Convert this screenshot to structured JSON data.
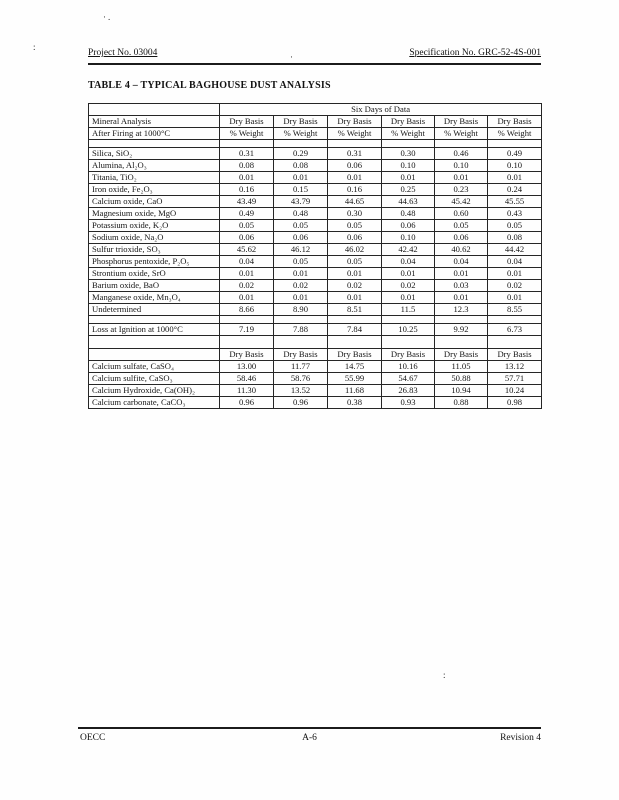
{
  "document": {
    "header": {
      "project": "Project No. 03004",
      "specification": "Specification No. GRC-52-4S-001"
    },
    "title": "TABLE 4 – TYPICAL BAGHOUSE DUST ANALYSIS",
    "footer": {
      "left": "OECC",
      "center": "A-6",
      "right": "Revision 4"
    }
  },
  "table": {
    "span_header": "Six Days of Data",
    "header_col1_line1": "Mineral Analysis",
    "header_col1_line2": "After Firing at 1000°C",
    "basis_label": "Dry Basis",
    "weight_label": "% Weight",
    "num_data_columns": 6,
    "mineral_rows": [
      {
        "label": "Silica, SiO₂",
        "values": [
          "0.31",
          "0.29",
          "0.31",
          "0.30",
          "0.46",
          "0.49"
        ]
      },
      {
        "label": "Alumina, Al₂O₃",
        "values": [
          "0.08",
          "0.08",
          "0.06",
          "0.10",
          "0.10",
          "0.10"
        ]
      },
      {
        "label": "Titania, TiO₂",
        "values": [
          "0.01",
          "0.01",
          "0.01",
          "0.01",
          "0.01",
          "0.01"
        ]
      },
      {
        "label": "Iron oxide, Fe₂O₃",
        "values": [
          "0.16",
          "0.15",
          "0.16",
          "0.25",
          "0.23",
          "0.24"
        ]
      },
      {
        "label": "Calcium oxide, CaO",
        "values": [
          "43.49",
          "43.79",
          "44.65",
          "44.63",
          "45.42",
          "45.55"
        ]
      },
      {
        "label": "Magnesium oxide, MgO",
        "values": [
          "0.49",
          "0.48",
          "0.30",
          "0.48",
          "0.60",
          "0.43"
        ]
      },
      {
        "label": "Potassium oxide, K₂O",
        "values": [
          "0.05",
          "0.05",
          "0.05",
          "0.06",
          "0.05",
          "0.05"
        ]
      },
      {
        "label": "Sodium oxide, Na₂O",
        "values": [
          "0.06",
          "0.06",
          "0.06",
          "0.10",
          "0.06",
          "0.08"
        ]
      },
      {
        "label": "Sulfur trioxide, SO₃",
        "values": [
          "45.62",
          "46.12",
          "46.02",
          "42.42",
          "40.62",
          "44.42"
        ]
      },
      {
        "label": "Phosphorus pentoxide, P₂O₅",
        "values": [
          "0.04",
          "0.05",
          "0.05",
          "0.04",
          "0.04",
          "0.04"
        ]
      },
      {
        "label": "Strontium oxide, SrO",
        "values": [
          "0.01",
          "0.01",
          "0.01",
          "0.01",
          "0.01",
          "0.01"
        ]
      },
      {
        "label": "Barium oxide, BaO",
        "values": [
          "0.02",
          "0.02",
          "0.02",
          "0.02",
          "0.03",
          "0.02"
        ]
      },
      {
        "label": "Manganese oxide, Mn₃O₄",
        "values": [
          "0.01",
          "0.01",
          "0.01",
          "0.01",
          "0.01",
          "0.01"
        ]
      },
      {
        "label": "Undetermined",
        "values": [
          "8.66",
          "8.90",
          "8.51",
          "11.5",
          "12.3",
          "8.55"
        ]
      }
    ],
    "loss_row": {
      "label": "Loss at Ignition at 1000°C",
      "values": [
        "7.19",
        "7.88",
        "7.84",
        "10.25",
        "9.92",
        "6.73"
      ]
    },
    "bottom_rows": [
      {
        "label": "Calcium sulfate, CaSO₄",
        "values": [
          "13.00",
          "11.77",
          "14.75",
          "10.16",
          "11.05",
          "13.12"
        ]
      },
      {
        "label": "Calcium sulfite, CaSO₃",
        "values": [
          "58.46",
          "58.76",
          "55.99",
          "54.67",
          "50.88",
          "57.71"
        ]
      },
      {
        "label": "Calcium Hydroxide, Ca(OH)₂",
        "values": [
          "11.30",
          "13.52",
          "11.68",
          "26.83",
          "10.94",
          "10.24"
        ]
      },
      {
        "label": "Calcium carbonate, CaCO₃",
        "values": [
          "0.96",
          "0.96",
          "0.38",
          "0.93",
          "0.88",
          "0.98"
        ]
      }
    ]
  }
}
